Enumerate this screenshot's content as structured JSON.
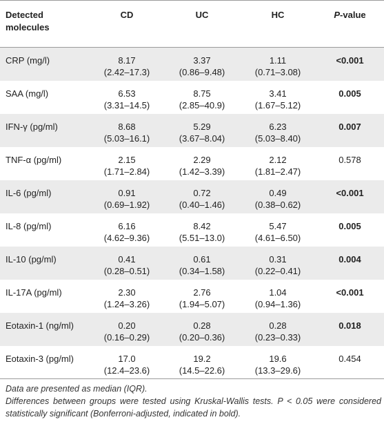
{
  "headers": {
    "molecule": "Detected molecules",
    "cd": "CD",
    "uc": "UC",
    "hc": "HC",
    "p_italic": "P",
    "p_suffix": "-value"
  },
  "rows": [
    {
      "name": "CRP (mg/l)",
      "cd": "8.17",
      "cd_ci": "(2.42–17.3)",
      "uc": "3.37",
      "uc_ci": "(0.86–9.48)",
      "hc": "1.11",
      "hc_ci": "(0.71–3.08)",
      "p": "<0.001",
      "bold": true
    },
    {
      "name": "SAA (mg/l)",
      "cd": "6.53",
      "cd_ci": "(3.31–14.5)",
      "uc": "8.75",
      "uc_ci": "(2.85–40.9)",
      "hc": "3.41",
      "hc_ci": "(1.67–5.12)",
      "p": "0.005",
      "bold": true
    },
    {
      "name": "IFN-γ (pg/ml)",
      "cd": "8.68",
      "cd_ci": "(5.03–16.1)",
      "uc": "5.29",
      "uc_ci": "(3.67–8.04)",
      "hc": "6.23",
      "hc_ci": "(5.03–8.40)",
      "p": "0.007",
      "bold": true
    },
    {
      "name": "TNF-α (pg/ml)",
      "cd": "2.15",
      "cd_ci": "(1.71–2.84)",
      "uc": "2.29",
      "uc_ci": "(1.42–3.39)",
      "hc": "2.12",
      "hc_ci": "(1.81–2.47)",
      "p": "0.578",
      "bold": false
    },
    {
      "name": "IL-6 (pg/ml)",
      "cd": "0.91",
      "cd_ci": "(0.69–1.92)",
      "uc": "0.72",
      "uc_ci": "(0.40–1.46)",
      "hc": "0.49",
      "hc_ci": "(0.38–0.62)",
      "p": "<0.001",
      "bold": true
    },
    {
      "name": "IL-8 (pg/ml)",
      "cd": "6.16",
      "cd_ci": "(4.62–9.36)",
      "uc": "8.42",
      "uc_ci": "(5.51–13.0)",
      "hc": "5.47",
      "hc_ci": "(4.61–6.50)",
      "p": "0.005",
      "bold": true
    },
    {
      "name": "IL-10 (pg/ml)",
      "cd": "0.41",
      "cd_ci": "(0.28–0.51)",
      "uc": "0.61",
      "uc_ci": "(0.34–1.58)",
      "hc": "0.31",
      "hc_ci": "(0.22–0.41)",
      "p": "0.004",
      "bold": true
    },
    {
      "name": "IL-17A (pg/ml)",
      "cd": "2.30",
      "cd_ci": "(1.24–3.26)",
      "uc": "2.76",
      "uc_ci": "(1.94–5.07)",
      "hc": "1.04",
      "hc_ci": "(0.94–1.36)",
      "p": "<0.001",
      "bold": true
    },
    {
      "name": "Eotaxin-1 (ng/ml)",
      "cd": "0.20",
      "cd_ci": "(0.16–0.29)",
      "uc": "0.28",
      "uc_ci": "(0.20–0.36)",
      "hc": "0.28",
      "hc_ci": "(0.23–0.33)",
      "p": "0.018",
      "bold": true
    },
    {
      "name": "Eotaxin-3 (pg/ml)",
      "cd": "17.0",
      "cd_ci": "(12.4–23.6)",
      "uc": "19.2",
      "uc_ci": "(14.5–22.6)",
      "hc": "19.6",
      "hc_ci": "(13.3–29.6)",
      "p": "0.454",
      "bold": false
    }
  ],
  "notes": {
    "line1": "Data are presented as median (IQR).",
    "line2": "Differences between groups were tested using Kruskal-Wallis tests. P < 0.05 were considered statistically significant (Bonferroni-adjusted, indicated in bold)."
  }
}
